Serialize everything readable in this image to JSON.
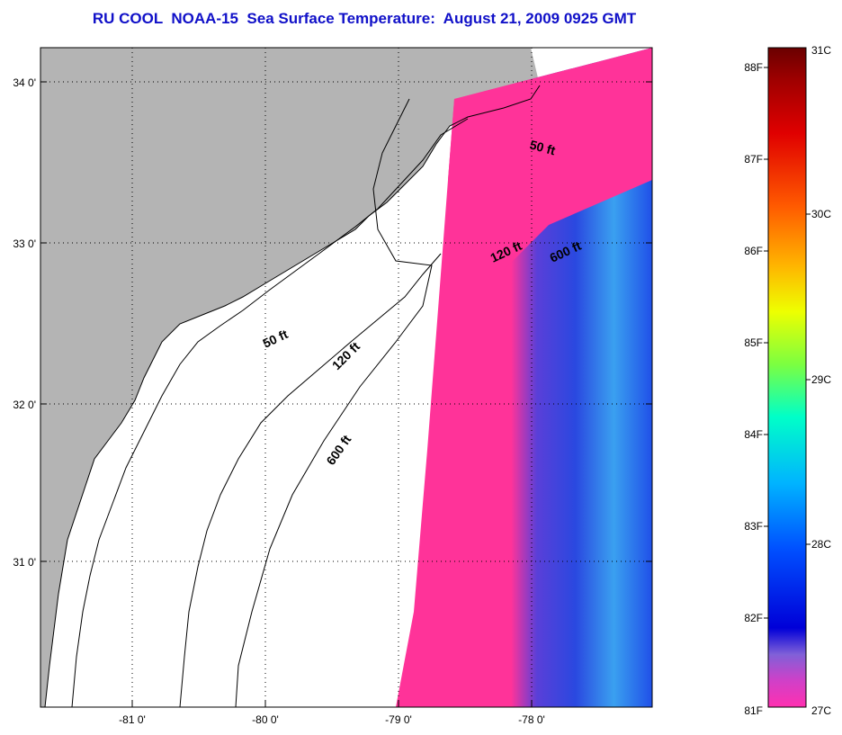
{
  "title": "RU COOL  NOAA-15  Sea Surface Temperature:  August 21, 2009 0925 GMT",
  "map": {
    "lat_ticks": [
      "34 0'",
      "33 0'",
      "32 0'",
      "31 0'"
    ],
    "lon_ticks": [
      "-81 0'",
      "-80 0'",
      "-79 0'",
      "-78 0'"
    ],
    "contours": [
      "50 ft",
      "120 ft",
      "600 ft"
    ],
    "colors": {
      "land": "#b4b4b4",
      "water_nodata": "#ffffff",
      "sst_warm_pink": "#ff3399",
      "sst_blue": "#2244dd",
      "sst_cyan": "#44ddee",
      "frame": "#000000",
      "title": "#1010c8"
    }
  },
  "colorbar": {
    "f_labels": [
      "88F",
      "87F",
      "86F",
      "85F",
      "84F",
      "83F",
      "82F",
      "81F"
    ],
    "c_labels": [
      "31C",
      "30C",
      "29C",
      "28C",
      "27C"
    ],
    "colors_top_to_bottom": [
      "#6a0000",
      "#d00000",
      "#ff3000",
      "#ff9000",
      "#ffd800",
      "#eaff00",
      "#7cff40",
      "#00ffc8",
      "#00b8ff",
      "#0060ff",
      "#0000d8",
      "#8060d8",
      "#d040c8",
      "#ff30b0"
    ]
  }
}
